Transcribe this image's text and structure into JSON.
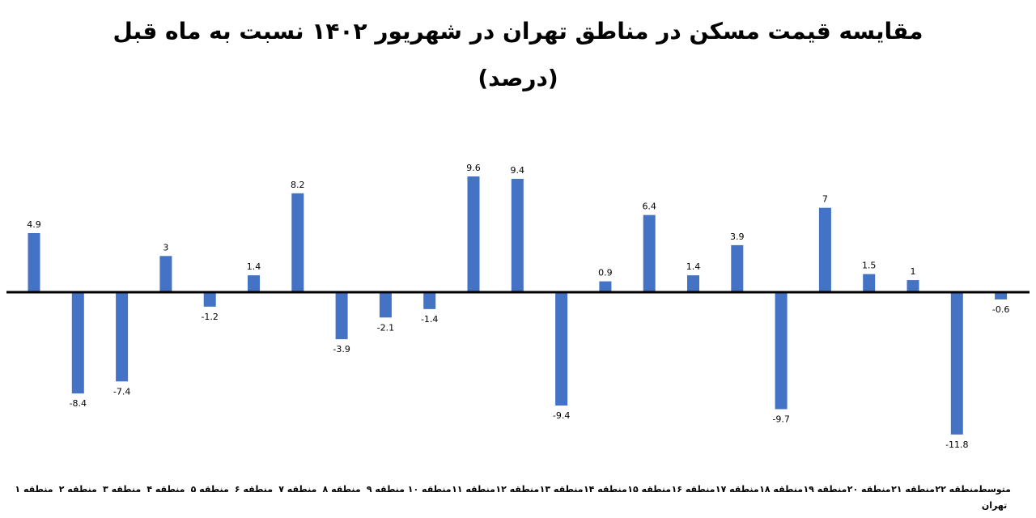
{
  "chart_data": {
    "type": "bar",
    "title": "مقایسه قیمت مسکن در مناطق تهران در شهریور ۱۴۰۲ نسبت به ماه قبل",
    "subtitle": "(درصد)",
    "categories": [
      "منطقه ۱",
      "منطقه ۲",
      "منطقه ۳",
      "منطقه ۴",
      "منطقه ۵",
      "منطقه ۶",
      "منطقه ۷",
      "منطقه ۸",
      "منطقه ۹",
      "منطقه ۱۰",
      "منطقه ۱۱",
      "منطقه ۱۲",
      "منطقه ۱۳",
      "منطقه ۱۴",
      "منطقه ۱۵",
      "منطقه ۱۶",
      "منطقه ۱۷",
      "منطقه ۱۸",
      "منطقه ۱۹",
      "منطقه ۲۰",
      "منطقه ۲۱",
      "منطقه ۲۲",
      "متوسط تهران"
    ],
    "values": [
      4.9,
      -8.4,
      -7.4,
      3,
      -1.2,
      1.4,
      8.2,
      -3.9,
      -2.1,
      -1.4,
      9.6,
      9.4,
      -9.4,
      0.9,
      6.4,
      1.4,
      3.9,
      -9.7,
      7,
      1.5,
      1,
      -11.8,
      -0.6
    ],
    "value_labels": [
      "4.9",
      "-8.4",
      "-7.4",
      "3",
      "-1.2",
      "1.4",
      "8.2",
      "-3.9",
      "-2.1",
      "-1.4",
      "9.6",
      "9.4",
      "-9.4",
      "0.9",
      "6.4",
      "1.4",
      "3.9",
      "-9.7",
      "7",
      "1.5",
      "1",
      "-11.8",
      "-0.6"
    ],
    "xlabel": "",
    "ylabel": "",
    "ylim": [
      -12,
      10
    ],
    "grid": false,
    "legend": "none",
    "bar_color": "#4472c4",
    "axis_color": "#000000"
  }
}
